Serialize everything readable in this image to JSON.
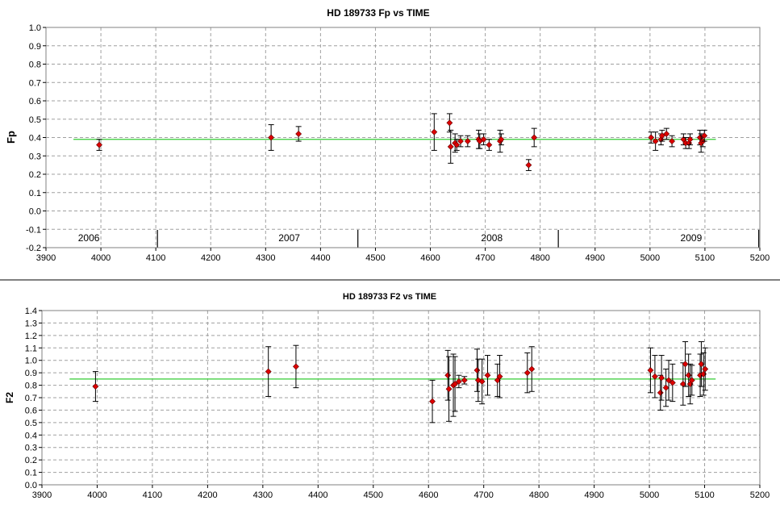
{
  "chart_data": [
    {
      "type": "scatter",
      "title": "HD 189733 Fp vs TIME",
      "xlabel": "",
      "ylabel": "Fp",
      "xlim": [
        3900,
        5200
      ],
      "ylim": [
        -0.2,
        1.0
      ],
      "x_ticks": [
        3900,
        4000,
        4100,
        4200,
        4300,
        4400,
        4500,
        4600,
        4700,
        4800,
        4900,
        5000,
        5100,
        5200
      ],
      "y_ticks": [
        -0.2,
        -0.1,
        0.0,
        0.1,
        0.2,
        0.3,
        0.4,
        0.5,
        0.6,
        0.7,
        0.8,
        0.9,
        1.0
      ],
      "y_tick_labels": [
        "-0.2",
        "-0.1",
        "0.0",
        "0.1",
        "0.2",
        "0.3",
        "0.4",
        "0.5",
        "0.6",
        "0.7",
        "0.8",
        "0.9",
        "1.0"
      ],
      "grid": true,
      "reference_line": {
        "y": 0.39,
        "x_start": 3950,
        "x_end": 5120,
        "color": "#33cc33"
      },
      "year_labels": [
        {
          "label": "2006",
          "x": 3978
        },
        {
          "label": "2007",
          "x": 4343
        },
        {
          "label": "2008",
          "x": 4712
        },
        {
          "label": "2009",
          "x": 5075
        }
      ],
      "year_dividers": [
        4103,
        4468,
        4833,
        5198
      ],
      "marker_color": "#dd0000",
      "series": [
        {
          "points": [
            {
              "x": 3997,
              "y": 0.36,
              "err": 0.03
            },
            {
              "x": 4310,
              "y": 0.4,
              "err": 0.07
            },
            {
              "x": 4360,
              "y": 0.42,
              "err": 0.04
            },
            {
              "x": 4607,
              "y": 0.43,
              "err": 0.1
            },
            {
              "x": 4635,
              "y": 0.48,
              "err": 0.05
            },
            {
              "x": 4637,
              "y": 0.35,
              "err": 0.09
            },
            {
              "x": 4645,
              "y": 0.37,
              "err": 0.05
            },
            {
              "x": 4648,
              "y": 0.36,
              "err": 0.03
            },
            {
              "x": 4655,
              "y": 0.38,
              "err": 0.03
            },
            {
              "x": 4668,
              "y": 0.38,
              "err": 0.03
            },
            {
              "x": 4688,
              "y": 0.39,
              "err": 0.05
            },
            {
              "x": 4690,
              "y": 0.38,
              "err": 0.04
            },
            {
              "x": 4697,
              "y": 0.39,
              "err": 0.03
            },
            {
              "x": 4707,
              "y": 0.36,
              "err": 0.03
            },
            {
              "x": 4727,
              "y": 0.38,
              "err": 0.06
            },
            {
              "x": 4729,
              "y": 0.39,
              "err": 0.03
            },
            {
              "x": 4779,
              "y": 0.25,
              "err": 0.03
            },
            {
              "x": 4789,
              "y": 0.4,
              "err": 0.05
            },
            {
              "x": 5002,
              "y": 0.4,
              "err": 0.03
            },
            {
              "x": 5010,
              "y": 0.38,
              "err": 0.05
            },
            {
              "x": 5020,
              "y": 0.39,
              "err": 0.03
            },
            {
              "x": 5022,
              "y": 0.41,
              "err": 0.03
            },
            {
              "x": 5030,
              "y": 0.42,
              "err": 0.03
            },
            {
              "x": 5040,
              "y": 0.38,
              "err": 0.03
            },
            {
              "x": 5061,
              "y": 0.39,
              "err": 0.03
            },
            {
              "x": 5065,
              "y": 0.37,
              "err": 0.03
            },
            {
              "x": 5071,
              "y": 0.37,
              "err": 0.03
            },
            {
              "x": 5073,
              "y": 0.39,
              "err": 0.03
            },
            {
              "x": 5091,
              "y": 0.4,
              "err": 0.04
            },
            {
              "x": 5093,
              "y": 0.37,
              "err": 0.05
            },
            {
              "x": 5096,
              "y": 0.38,
              "err": 0.03
            },
            {
              "x": 5099,
              "y": 0.41,
              "err": 0.03
            }
          ]
        }
      ]
    },
    {
      "type": "scatter",
      "title": "HD 189733 F2 vs TIME",
      "xlabel": "",
      "ylabel": "F2",
      "xlim": [
        3900,
        5200
      ],
      "ylim": [
        0.0,
        1.4
      ],
      "x_ticks": [
        3900,
        4000,
        4100,
        4200,
        4300,
        4400,
        4500,
        4600,
        4700,
        4800,
        4900,
        5000,
        5100,
        5200
      ],
      "y_ticks": [
        0.0,
        0.1,
        0.2,
        0.3,
        0.4,
        0.5,
        0.6,
        0.7,
        0.8,
        0.9,
        1.0,
        1.1,
        1.2,
        1.3,
        1.4
      ],
      "y_tick_labels": [
        "0.0",
        "0.1",
        "0.2",
        "0.3",
        "0.4",
        "0.5",
        "0.6",
        "0.7",
        "0.8",
        "0.9",
        "1.0",
        "1.1",
        "1.2",
        "1.3",
        "1.4"
      ],
      "grid": true,
      "reference_line": {
        "y": 0.85,
        "x_start": 3950,
        "x_end": 5120,
        "color": "#33cc33"
      },
      "marker_color": "#dd0000",
      "series": [
        {
          "points": [
            {
              "x": 3997,
              "y": 0.79,
              "err": 0.12
            },
            {
              "x": 4310,
              "y": 0.91,
              "err": 0.2
            },
            {
              "x": 4360,
              "y": 0.95,
              "err": 0.17
            },
            {
              "x": 4607,
              "y": 0.67,
              "err": 0.17
            },
            {
              "x": 4635,
              "y": 0.88,
              "err": 0.2
            },
            {
              "x": 4637,
              "y": 0.77,
              "err": 0.26
            },
            {
              "x": 4645,
              "y": 0.8,
              "err": 0.25
            },
            {
              "x": 4648,
              "y": 0.81,
              "err": 0.22
            },
            {
              "x": 4655,
              "y": 0.83,
              "err": 0.05
            },
            {
              "x": 4665,
              "y": 0.84,
              "err": 0.03
            },
            {
              "x": 4688,
              "y": 0.92,
              "err": 0.17
            },
            {
              "x": 4690,
              "y": 0.84,
              "err": 0.17
            },
            {
              "x": 4697,
              "y": 0.83,
              "err": 0.18
            },
            {
              "x": 4707,
              "y": 0.88,
              "err": 0.16
            },
            {
              "x": 4725,
              "y": 0.84,
              "err": 0.13
            },
            {
              "x": 4729,
              "y": 0.87,
              "err": 0.17
            },
            {
              "x": 4779,
              "y": 0.9,
              "err": 0.16
            },
            {
              "x": 4787,
              "y": 0.93,
              "err": 0.18
            },
            {
              "x": 5002,
              "y": 0.92,
              "err": 0.18
            },
            {
              "x": 5010,
              "y": 0.87,
              "err": 0.17
            },
            {
              "x": 5020,
              "y": 0.74,
              "err": 0.14
            },
            {
              "x": 5022,
              "y": 0.86,
              "err": 0.18
            },
            {
              "x": 5030,
              "y": 0.78,
              "err": 0.15
            },
            {
              "x": 5035,
              "y": 0.84,
              "err": 0.16
            },
            {
              "x": 5042,
              "y": 0.82,
              "err": 0.15
            },
            {
              "x": 5061,
              "y": 0.81,
              "err": 0.17
            },
            {
              "x": 5065,
              "y": 0.97,
              "err": 0.18
            },
            {
              "x": 5071,
              "y": 0.88,
              "err": 0.17
            },
            {
              "x": 5074,
              "y": 0.81,
              "err": 0.16
            },
            {
              "x": 5077,
              "y": 0.84,
              "err": 0.12
            },
            {
              "x": 5092,
              "y": 0.88,
              "err": 0.17
            },
            {
              "x": 5094,
              "y": 0.97,
              "err": 0.18
            },
            {
              "x": 5098,
              "y": 0.89,
              "err": 0.17
            },
            {
              "x": 5101,
              "y": 0.93,
              "err": 0.17
            }
          ]
        }
      ]
    }
  ]
}
